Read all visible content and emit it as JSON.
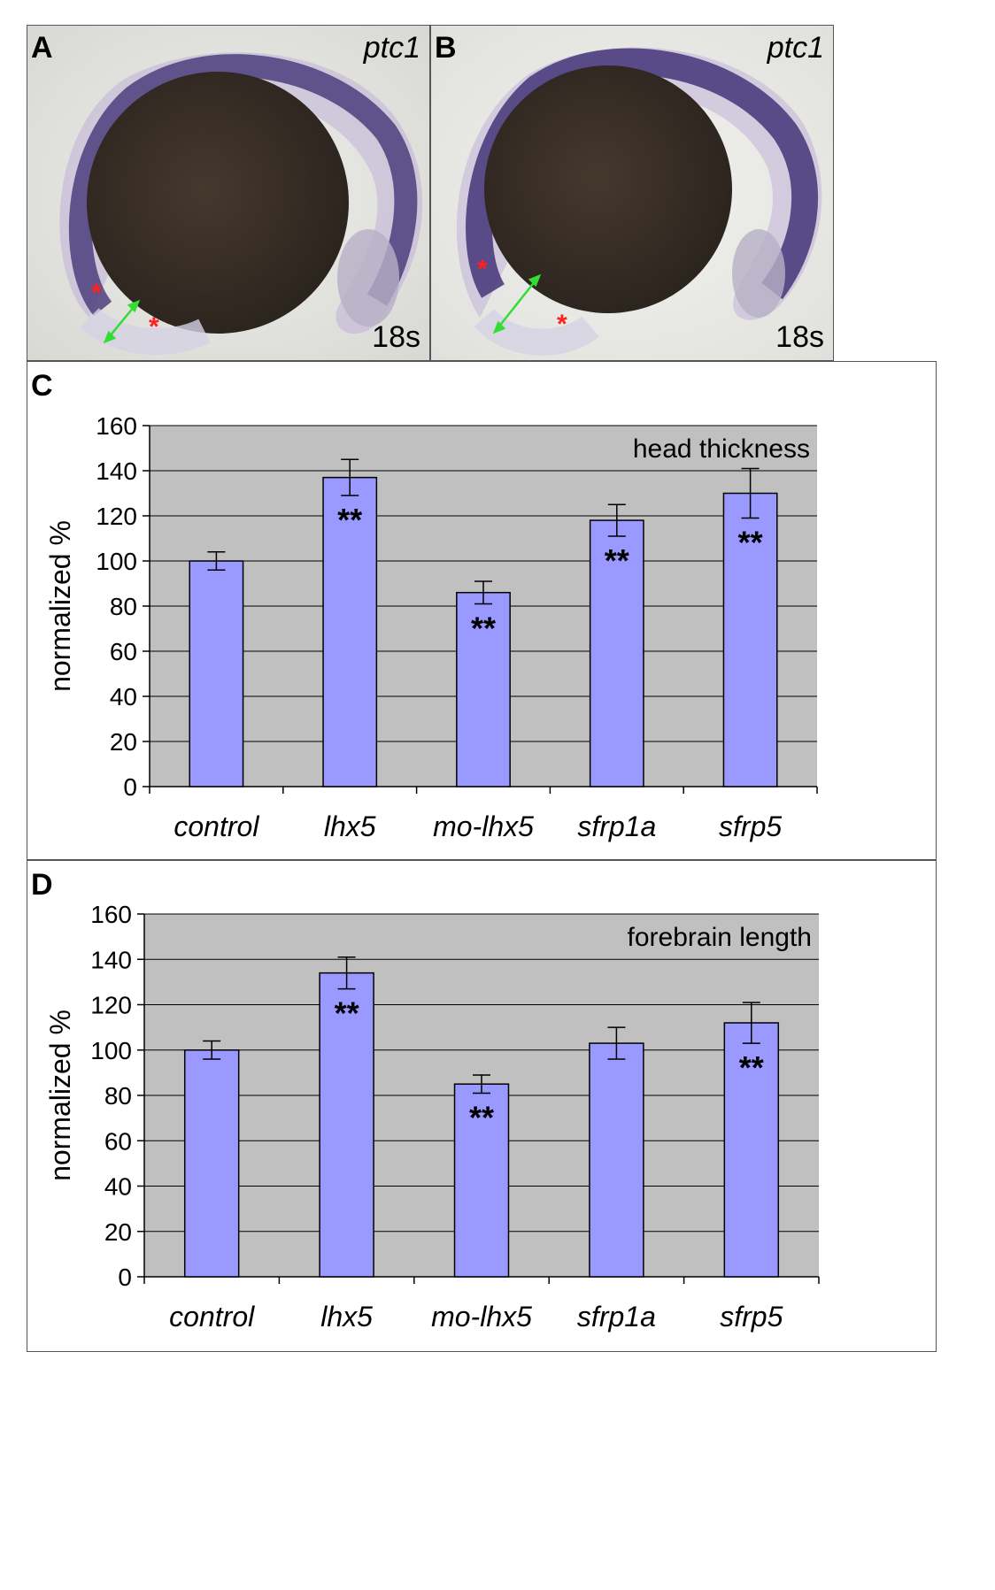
{
  "photos": [
    {
      "letter": "A",
      "gene": "ptc1",
      "stage": "18s"
    },
    {
      "letter": "B",
      "gene": "ptc1",
      "stage": "18s"
    }
  ],
  "colors": {
    "bar": "#9999ff",
    "plot_bg": "#c0c0c0",
    "asterisk_marker": "#ff2020",
    "arrow": "#33dd33",
    "stain": "#3a2a6a",
    "yolk": "#3a3128"
  },
  "chart_data": [
    {
      "panel": "C",
      "type": "bar",
      "title": "head thickness",
      "ylabel": "normalized %",
      "xlabel": "",
      "ylim": [
        0,
        160
      ],
      "yticks": [
        0,
        20,
        40,
        60,
        80,
        100,
        120,
        140,
        160
      ],
      "categories": [
        "control",
        "lhx5",
        "mo-lhx5",
        "sfrp1a",
        "sfrp5"
      ],
      "values": [
        100,
        137,
        86,
        118,
        130
      ],
      "errors": [
        4,
        8,
        5,
        7,
        11
      ],
      "significance": [
        "",
        "**",
        "**",
        "**",
        "**"
      ],
      "grid": true
    },
    {
      "panel": "D",
      "type": "bar",
      "title": "forebrain length",
      "ylabel": "normalized %",
      "xlabel": "",
      "ylim": [
        0,
        160
      ],
      "yticks": [
        0,
        20,
        40,
        60,
        80,
        100,
        120,
        140,
        160
      ],
      "categories": [
        "control",
        "lhx5",
        "mo-lhx5",
        "sfrp1a",
        "sfrp5"
      ],
      "values": [
        100,
        134,
        85,
        103,
        112
      ],
      "errors": [
        4,
        7,
        4,
        7,
        9
      ],
      "significance": [
        "",
        "**",
        "**",
        "",
        "**"
      ],
      "grid": true
    }
  ]
}
